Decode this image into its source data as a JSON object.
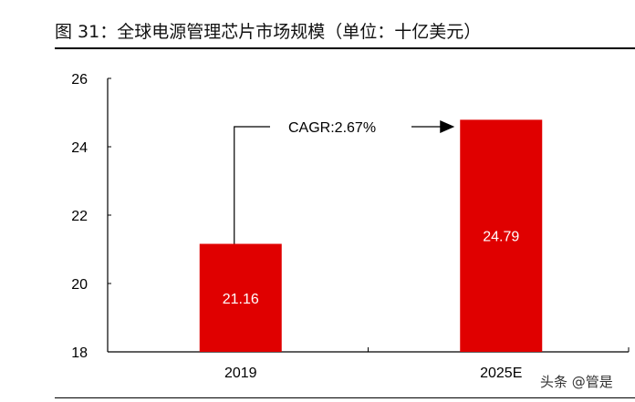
{
  "title": "图 31：全球电源管理芯片市场规模（单位：十亿美元）",
  "watermark": "头条 @管是",
  "chart_data": {
    "type": "bar",
    "title": "全球电源管理芯片市场规模（单位：十亿美元）",
    "xlabel": "",
    "ylabel": "",
    "categories": [
      "2019",
      "2025E"
    ],
    "values": [
      21.16,
      24.79
    ],
    "value_labels": [
      "21.16",
      "24.79"
    ],
    "ylim": [
      18,
      26
    ],
    "yticks": [
      18,
      20,
      22,
      24,
      26
    ],
    "ytick_labels": [
      "18",
      "20",
      "22",
      "24",
      "26"
    ],
    "grid": false,
    "bar_color": "#E00000",
    "annotation": "CAGR:2.67%"
  }
}
